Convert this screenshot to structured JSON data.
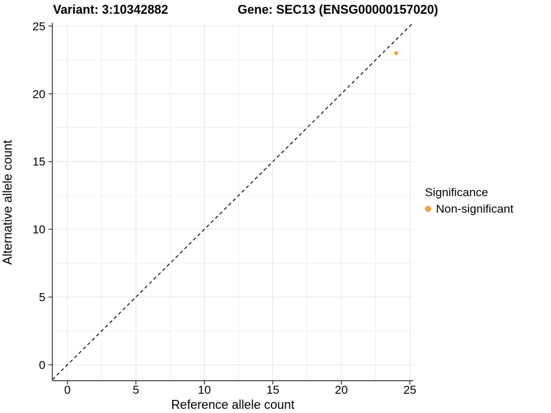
{
  "title": {
    "left": "Variant: 3:10342882",
    "right": "Gene: SEC13 (ENSG00000157020)"
  },
  "chart_data": {
    "type": "scatter",
    "xlabel": "Reference allele count",
    "ylabel": "Alternative allele count",
    "xlim": [
      -1.1,
      25.25
    ],
    "ylim": [
      -1.17,
      25.25
    ],
    "xticks": [
      0,
      5,
      10,
      15,
      20,
      25
    ],
    "yticks": [
      0,
      5,
      10,
      15,
      20,
      25
    ],
    "minor_ticks": [
      2.5,
      7.5,
      12.5,
      17.5,
      22.5
    ],
    "grid": true,
    "points": [
      {
        "x": 24,
        "y": 23,
        "series": "Non-significant"
      }
    ],
    "identity_line": {
      "slope": 1,
      "intercept": 0,
      "style": "dashed"
    },
    "legend": {
      "title": "Significance",
      "position": "right",
      "items": [
        {
          "label": "Non-significant",
          "color": "#F9A242"
        }
      ]
    }
  },
  "colors": {
    "point": "#F9A242",
    "axis": "#404040",
    "tick_text": "#000000",
    "grid_major": "#E6E6E6",
    "grid_minor": "#F0F0F0",
    "identity_line": "#000000",
    "background": "#FFFFFF"
  }
}
